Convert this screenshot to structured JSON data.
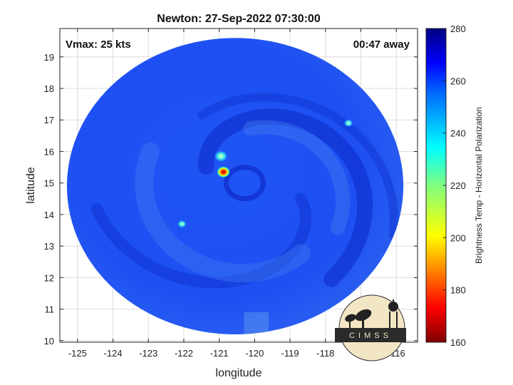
{
  "title": "Newton: 27-Sep-2022 07:30:00",
  "vmax_label": "Vmax: 25 kts",
  "time_away_label": "00:47 away",
  "chart_data": {
    "type": "heatmap",
    "xlabel": "longitude",
    "ylabel": "latitude",
    "xlim": [
      -125.5,
      -115.4
    ],
    "ylim": [
      9.95,
      19.9
    ],
    "x_ticks": [
      -125,
      -124,
      -123,
      -122,
      -121,
      -120,
      -119,
      -118,
      -117,
      -116
    ],
    "y_ticks": [
      10,
      11,
      12,
      13,
      14,
      15,
      16,
      17,
      18,
      19
    ],
    "grid": true,
    "colorbar": {
      "label": "Brightness Temp - Horizontal Polarization",
      "range": [
        160,
        280
      ],
      "ticks": [
        160,
        180,
        200,
        220,
        240,
        260,
        280
      ],
      "colormap": "jet"
    },
    "swath_center": {
      "lon": -120.55,
      "lat": 14.9
    },
    "features": [
      {
        "name": "storm-center-cold-spot",
        "lon": -120.88,
        "lat": 15.35,
        "value": 180
      },
      {
        "name": "cold-spot-north",
        "lon": -120.95,
        "lat": 15.85,
        "value": 225
      },
      {
        "name": "cold-spot-east",
        "lon": -117.35,
        "lat": 16.9,
        "value": 235
      },
      {
        "name": "cold-spot-west",
        "lon": -122.05,
        "lat": 13.7,
        "value": 240
      }
    ]
  },
  "logo": {
    "text": "CIMSS"
  },
  "colors": {
    "swath_base": "#1c4ef5",
    "swath_light": "#3a72f2",
    "swath_dark": "#0d27c8",
    "grid": "#dcdcdc",
    "logo_bg": "#f2e6c4"
  }
}
